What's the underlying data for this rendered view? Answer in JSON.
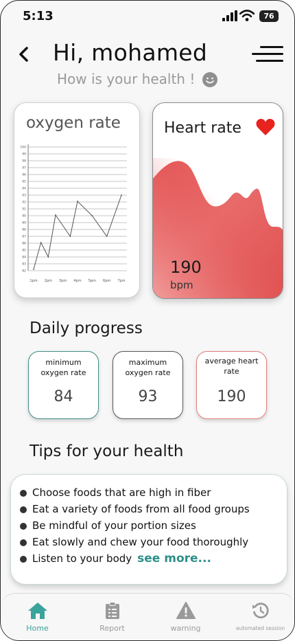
{
  "status_bar": {
    "time": "5:13",
    "battery": "76"
  },
  "header": {
    "greeting": "Hi, mohamed",
    "subtitle": "How is your health !",
    "icons": [
      "back-arrow-icon",
      "menu-icon",
      "smile-icon"
    ]
  },
  "oxygen_card": {
    "title": "oxygen rate",
    "chart_data": {
      "type": "line",
      "x": [
        "1pm",
        "2pm",
        "3pm",
        "4pm",
        "5pm",
        "6pm",
        "7pm"
      ],
      "y_ticks": [
        "100",
        "99",
        "98",
        "97",
        "96",
        "95",
        "94",
        "93",
        "92",
        "91",
        "90",
        "89",
        "88",
        "87",
        "86",
        "85",
        "84",
        "83",
        "82"
      ],
      "ylim": [
        82,
        100
      ],
      "points": [
        {
          "x": "1pm",
          "y": 82.2
        },
        {
          "x": "1.5pm",
          "y": 86.1
        },
        {
          "x": "2pm",
          "y": 84.0
        },
        {
          "x": "2.5pm",
          "y": 90.1
        },
        {
          "x": "3.5pm",
          "y": 87.0
        },
        {
          "x": "4pm",
          "y": 92.1
        },
        {
          "x": "5pm",
          "y": 90.0
        },
        {
          "x": "6pm",
          "y": 87.0
        },
        {
          "x": "7pm",
          "y": 93.0
        }
      ],
      "grid": true
    }
  },
  "heart_card": {
    "title": "Heart rate",
    "value": "190",
    "unit": "bpm",
    "color": "#e05555"
  },
  "daily_progress": {
    "title": "Daily progress",
    "stats": [
      {
        "label": "minimum oxygen rate",
        "value": "84",
        "border": "#3d8c86"
      },
      {
        "label": "maximum oxygen rate",
        "value": "93",
        "border": "#555555"
      },
      {
        "label": "average heart rate",
        "value": "190",
        "border": "#e07b7b"
      }
    ]
  },
  "tips": {
    "title": "Tips for your health",
    "items": [
      "Choose foods that are high in fiber",
      "Eat a variety of foods from all food groups",
      "Be mindful of your portion sizes",
      "Eat slowly and chew your food thoroughly",
      "Listen to your body"
    ],
    "see_more": "see more..."
  },
  "nav": {
    "items": [
      {
        "label": "Home",
        "icon": "home-icon",
        "active": true
      },
      {
        "label": "Report",
        "icon": "clipboard-icon",
        "active": false
      },
      {
        "label": "warning",
        "icon": "warning-icon",
        "active": false
      },
      {
        "label": "automated session",
        "icon": "history-icon",
        "active": false
      }
    ]
  },
  "colors": {
    "accent": "#3aa39c",
    "heart": "#e05555",
    "teal_text": "#2f8f8a"
  }
}
